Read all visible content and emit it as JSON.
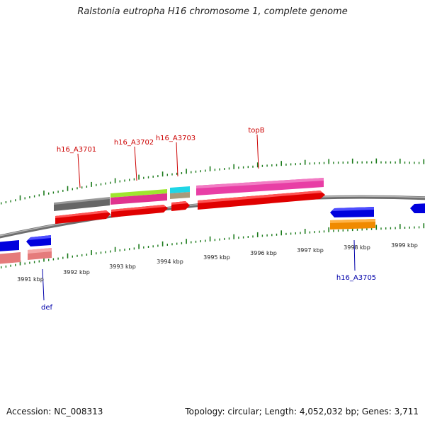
{
  "title": "Ralstonia eutropha H16 chromosome 1, complete genome",
  "footer": {
    "accession": "Accession: NC_008313",
    "summary": "Topology: circular; Length: 4,052,032 bp; Genes: 3,711"
  },
  "colors": {
    "backbone": "#888888",
    "tick": "#1a7a1a",
    "label_forward": "#cc0000",
    "label_reverse": "#0000aa"
  },
  "kbp_labels": [
    "3991 kbp",
    "3992 kbp",
    "3993 kbp",
    "3994 kbp",
    "3995 kbp",
    "3996 kbp",
    "3997 kbp",
    "3998 kbp",
    "3999 kbp"
  ],
  "gene_labels": [
    {
      "id": "h16_A3701",
      "strand": "forward"
    },
    {
      "id": "h16_A3702",
      "strand": "forward"
    },
    {
      "id": "h16_A3703",
      "strand": "forward"
    },
    {
      "id": "topB",
      "strand": "forward"
    },
    {
      "id": "h16_A3705",
      "strand": "reverse"
    },
    {
      "id": "def",
      "strand": "reverse"
    }
  ]
}
